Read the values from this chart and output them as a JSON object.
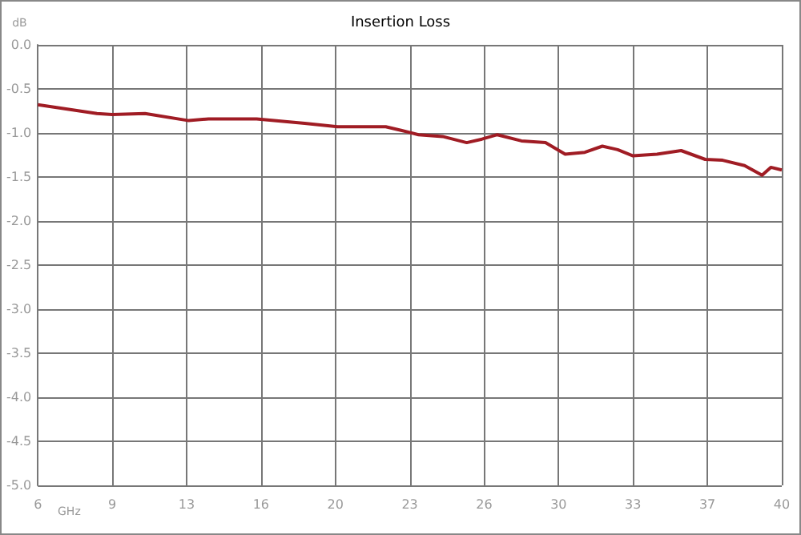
{
  "chart_data": {
    "type": "line",
    "title": "Insertion Loss",
    "xlabel": "GHz",
    "ylabel": "dB",
    "series": [
      {
        "color": "#a01c24",
        "x": [
          6,
          8.7,
          9.4,
          10.9,
          12.9,
          13.8,
          16,
          18.2,
          19.7,
          21.9,
          22.6,
          23.4,
          24.5,
          25.6,
          26.3,
          27.0,
          28.1,
          29.2,
          30.1,
          31,
          31.8,
          32.5,
          33.2,
          34.3,
          35.4,
          36.5,
          37.3,
          38.3,
          39.1,
          39.5,
          40
        ],
        "values": [
          -0.68,
          -0.78,
          -0.79,
          -0.78,
          -0.86,
          -0.84,
          -0.84,
          -0.89,
          -0.93,
          -0.93,
          -0.97,
          -1.02,
          -1.04,
          -1.11,
          -1.07,
          -1.02,
          -1.09,
          -1.11,
          -1.24,
          -1.22,
          -1.15,
          -1.19,
          -1.26,
          -1.24,
          -1.2,
          -1.3,
          -1.31,
          -1.37,
          -1.48,
          -1.39,
          -1.42
        ]
      }
    ],
    "xlim": [
      6,
      40
    ],
    "xticks": [
      6,
      {
        "value": 9.4,
        "label": "9"
      },
      {
        "value": 12.8,
        "label": "13"
      },
      {
        "value": 16.2,
        "label": "16"
      },
      {
        "value": 19.6,
        "label": "20"
      },
      23,
      {
        "value": 26.4,
        "label": "26"
      },
      {
        "value": 29.8,
        "label": "30"
      },
      {
        "value": 33.2,
        "label": "33"
      },
      {
        "value": 36.6,
        "label": "37"
      },
      40
    ],
    "ylim": [
      -5,
      0
    ],
    "yticks": [
      {
        "value": -5,
        "label": "-5.0"
      },
      {
        "value": -4.5,
        "label": "-4.5"
      },
      {
        "value": -4,
        "label": "-4.0"
      },
      {
        "value": -3.5,
        "label": "-3.5"
      },
      {
        "value": -3,
        "label": "-3.0"
      },
      {
        "value": -2.5,
        "label": "-2.5"
      },
      {
        "value": -2,
        "label": "-2.0"
      },
      {
        "value": -1.5,
        "label": "-1.5"
      },
      {
        "value": -1,
        "label": "-1.0"
      },
      {
        "value": -0.5,
        "label": "-0.5"
      },
      {
        "value": 0,
        "label": "0.0"
      }
    ],
    "grid": true,
    "marker": "none",
    "line_style": "solid"
  }
}
